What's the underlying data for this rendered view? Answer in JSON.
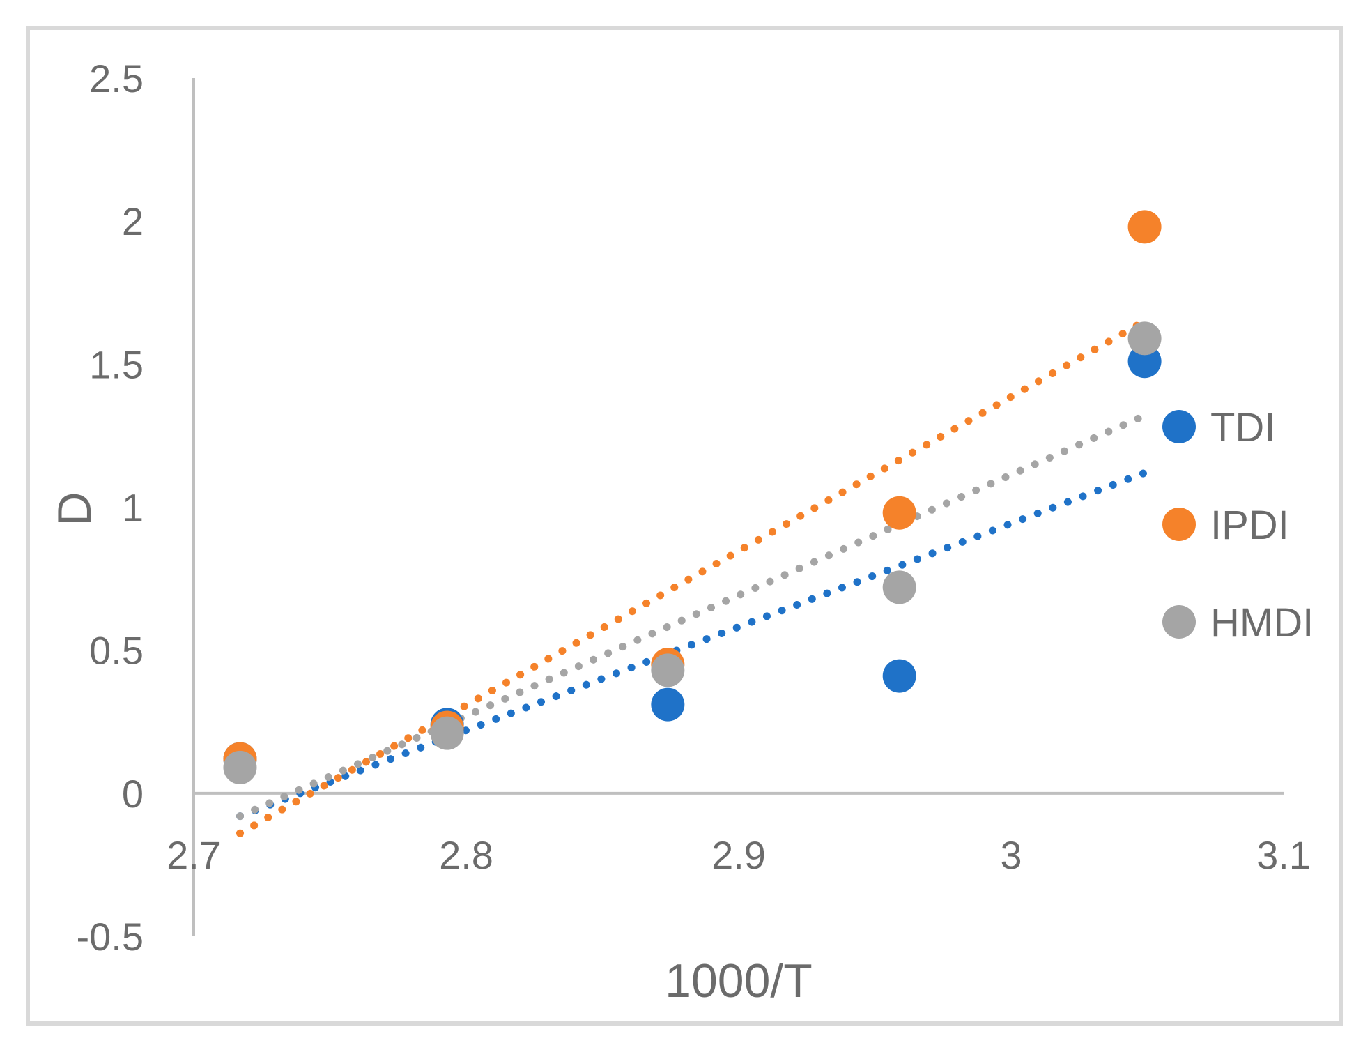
{
  "chart_data": {
    "type": "scatter",
    "title": "",
    "xlabel": "1000/T",
    "ylabel": "D",
    "xlim": [
      2.7,
      3.1
    ],
    "ylim": [
      -0.5,
      2.5
    ],
    "x_ticks": [
      "2.7",
      "2.8",
      "2.9",
      "3",
      "3.1"
    ],
    "y_ticks": [
      "-0.5",
      "0",
      "0.5",
      "1",
      "1.5",
      "2",
      "2.5"
    ],
    "grid": false,
    "legend_position": "right",
    "x": [
      2.717,
      2.793,
      2.874,
      2.959,
      3.049
    ],
    "series": [
      {
        "name": "TDI",
        "color": "#1f72c8",
        "values": [
          0.12,
          0.24,
          0.31,
          0.41,
          1.51
        ],
        "trendline": {
          "style": "dotted",
          "x": [
            2.717,
            3.049
          ],
          "y": [
            -0.08,
            1.12
          ]
        }
      },
      {
        "name": "IPDI",
        "color": "#f5822a",
        "values": [
          0.12,
          0.23,
          0.45,
          0.98,
          1.98
        ],
        "trendline": {
          "style": "dotted",
          "x": [
            2.717,
            3.049
          ],
          "y": [
            -0.14,
            1.65
          ]
        }
      },
      {
        "name": "HMDI",
        "color": "#a5a5a5",
        "values": [
          0.09,
          0.21,
          0.43,
          0.72,
          1.59
        ],
        "trendline": {
          "style": "dotted",
          "x": [
            2.717,
            3.049
          ],
          "y": [
            -0.08,
            1.32
          ]
        }
      }
    ]
  }
}
